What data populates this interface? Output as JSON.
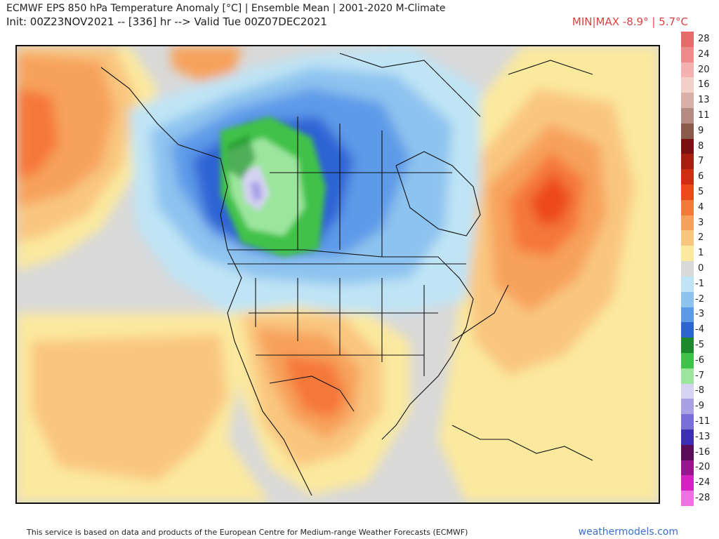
{
  "header": {
    "title": "ECMWF EPS 850 hPa Temperature Anomaly [°C] | Ensemble Mean | 2001-2020 M-Climate",
    "subtitle": "Init: 00Z23NOV2021 -- [336] hr --> Valid Tue 00Z07DEC2021",
    "minmax": "MIN|MAX -8.9° | 5.7°C"
  },
  "colorbar": {
    "levels": [
      {
        "label": "28",
        "color": "#e86a6a"
      },
      {
        "label": "24",
        "color": "#f08b8b"
      },
      {
        "label": "20",
        "color": "#f5b0b0"
      },
      {
        "label": "16",
        "color": "#f3d0c8"
      },
      {
        "label": "13",
        "color": "#d8b0a8"
      },
      {
        "label": "11",
        "color": "#b58a80"
      },
      {
        "label": "9",
        "color": "#8a5a4c"
      },
      {
        "label": "8",
        "color": "#7a1010"
      },
      {
        "label": "7",
        "color": "#a81d10"
      },
      {
        "label": "6",
        "color": "#cf2d12"
      },
      {
        "label": "5",
        "color": "#ec4a1c"
      },
      {
        "label": "4",
        "color": "#f5783a"
      },
      {
        "label": "3",
        "color": "#f7a25c"
      },
      {
        "label": "2",
        "color": "#f9c680"
      },
      {
        "label": "1",
        "color": "#fbe99e"
      },
      {
        "label": "0",
        "color": "#d9d9d9"
      },
      {
        "label": "-1",
        "color": "#bfe4f5"
      },
      {
        "label": "-2",
        "color": "#8dc3ef"
      },
      {
        "label": "-3",
        "color": "#5d9ae8"
      },
      {
        "label": "-4",
        "color": "#2d64d4"
      },
      {
        "label": "-5",
        "color": "#1c8a2c"
      },
      {
        "label": "-6",
        "color": "#3fc24a"
      },
      {
        "label": "-7",
        "color": "#9be59c"
      },
      {
        "label": "-8",
        "color": "#d6d2f2"
      },
      {
        "label": "-9",
        "color": "#a9a0e6"
      },
      {
        "label": "-11",
        "color": "#7a6ed8"
      },
      {
        "label": "-13",
        "color": "#3d2eb8"
      },
      {
        "label": "-16",
        "color": "#5a0e5a"
      },
      {
        "label": "-20",
        "color": "#9a1490"
      },
      {
        "label": "-24",
        "color": "#d71fc2"
      },
      {
        "label": "-28",
        "color": "#f070e4"
      }
    ]
  },
  "footer": {
    "credit": "This service is based on data and products of the European Centre for Medium-range Weather Forecasts (ECMWF)",
    "brand": "weathermodels.com"
  }
}
